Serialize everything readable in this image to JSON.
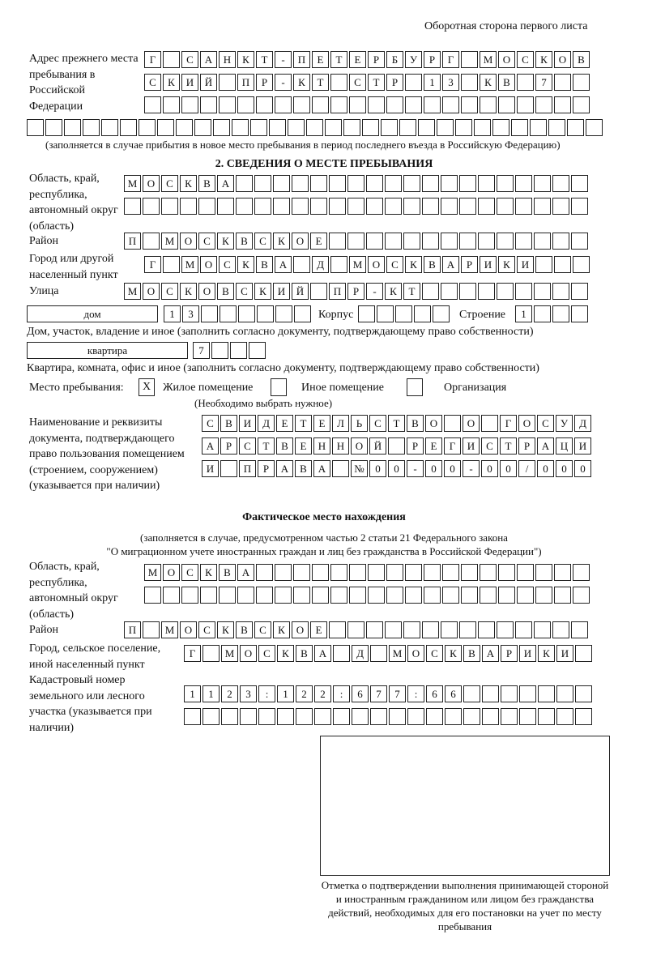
{
  "header": "Оборотная сторона первого листа",
  "prev_address": {
    "label": "Адрес прежнего места пребывания в Российской Федерации",
    "rows": [
      "Г САНКТ-ПЕТЕРБУРГ МОСКОВ",
      "СКИЙ ПР-КТ СТР 13 КВ 7",
      "",
      ""
    ],
    "note": "(заполняется в случае прибытия в новое место пребывания в период последнего въезда в Российскую Федерацию)"
  },
  "section2": {
    "title": "2. СВЕДЕНИЯ О МЕСТЕ ПРЕБЫВАНИЯ",
    "region_label": "Область, край, республика, автономный округ (область)",
    "region_rows": [
      "МОСКВА",
      ""
    ],
    "district_label": "Район",
    "district": "П МОСКВСКОЕ",
    "city_label": "Город или другой населенный пункт",
    "city": "Г МОСКВА Д МОСКВАРИКИ",
    "street_label": "Улица",
    "street": "МОСКОВСКИЙ ПР-КТ",
    "house_type": "дом",
    "house_number": "13",
    "korpus_label": "Корпус",
    "korpus": "",
    "building_label": "Строение",
    "building": "1",
    "house_note": "Дом, участок, владение и иное (заполнить согласно документу, подтверждающему право собственности)",
    "flat_type": "квартира",
    "flat_number": "7",
    "flat_note": "Квартира, комната, офис и иное (заполнить согласно документу, подтверждающему право собственности)",
    "stay_label": "Место пребывания:",
    "options": [
      {
        "label": "Жилое помещение",
        "mark": "X"
      },
      {
        "label": "Иное помещение",
        "mark": ""
      },
      {
        "label": "Организация",
        "mark": ""
      }
    ],
    "choose_note": "(Необходимо выбрать нужное)",
    "doc_label": "Наименование и реквизиты документа, подтверждающего право пользования помещением (строением, сооружением) (указывается при наличии)",
    "doc_rows": [
      "СВИДЕТЕЛЬСТВО О ГОСУД",
      "АРСТВЕННОЙ РЕГИСТРАЦИ",
      "И ПРАВА №00-00-00/000"
    ]
  },
  "actual": {
    "title": "Фактическое место нахождения",
    "note1": "(заполняется в случае, предусмотренном частью 2 статьи 21 Федерального закона",
    "note2": "\"О миграционном учете иностранных граждан и лиц без гражданства в Российской Федерации\")",
    "region_label": "Область, край, республика, автономный округ (область)",
    "region_rows": [
      "МОСКВА",
      ""
    ],
    "district_label": "Район",
    "district": "П МОСКВСКОЕ",
    "city_label": "Город, сельское поселение, иной населенный пункт",
    "city": "Г МОСКВА Д МОСКВАРИКИ",
    "cadastral_label": "Кадастровый номер земельного или лесного участка (указывается при наличии)",
    "cadastral_rows": [
      "1123:122:677:66",
      ""
    ]
  },
  "stamp": {
    "caption": "Отметка о подтверждении выполнения принимающей стороной и иностранным гражданином или лицом без гражданства действий, необходимых для его постановки на учет по месту пребывания"
  }
}
